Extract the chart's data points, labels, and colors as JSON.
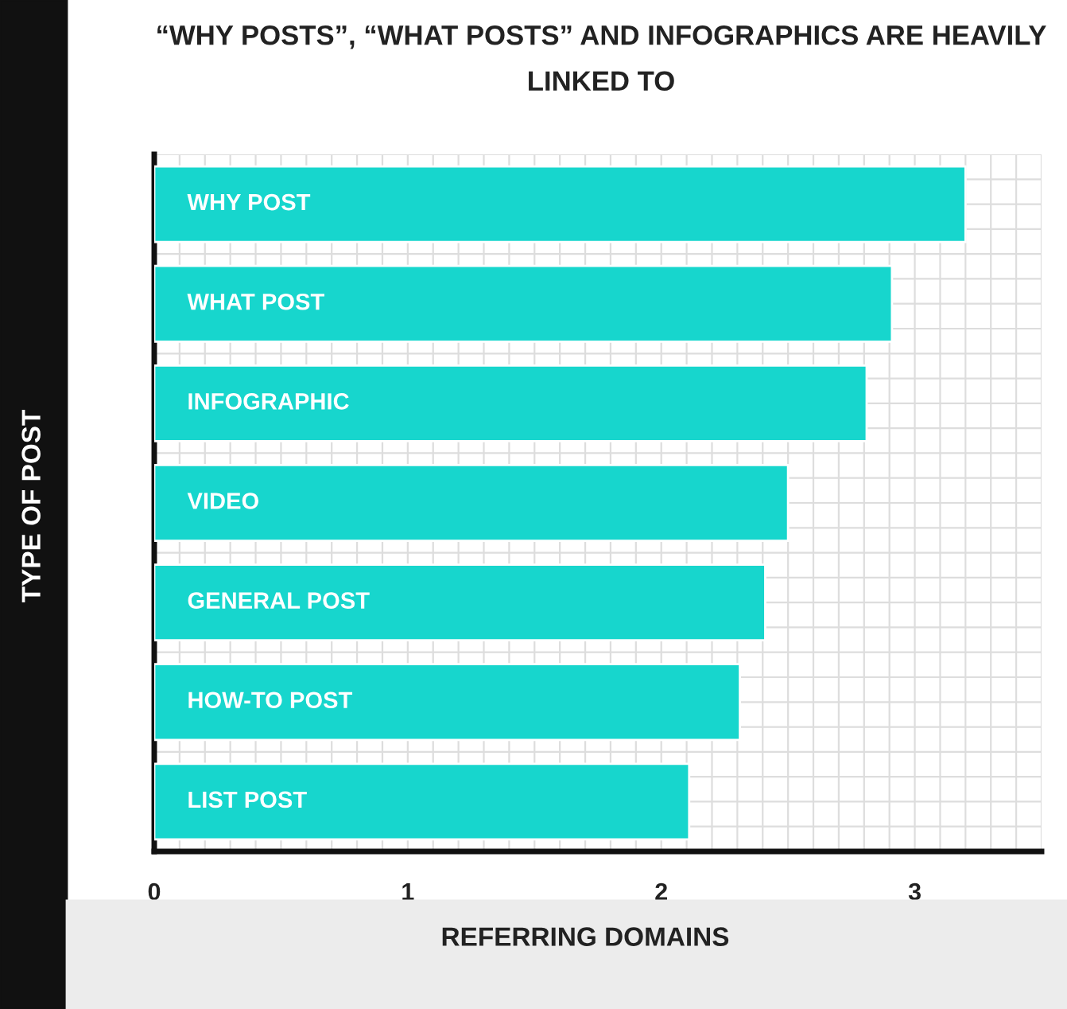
{
  "chart_data": {
    "type": "bar",
    "orientation": "horizontal",
    "title": "“WHY POSTS”, “WHAT POSTS” AND INFOGRAPHICS ARE HEAVILY LINKED TO",
    "xlabel": "REFERRING DOMAINS",
    "ylabel": "TYPE OF POST",
    "categories": [
      "WHY POST",
      "WHAT POST",
      "INFOGRAPHIC",
      "VIDEO",
      "GENERAL POST",
      "HOW-TO POST",
      "LIST POST"
    ],
    "values": [
      3.2,
      2.91,
      2.81,
      2.5,
      2.41,
      2.31,
      2.11
    ],
    "color": "#17d6cd",
    "xlim": [
      0,
      3.5
    ],
    "xticks": [
      0,
      1,
      2,
      3
    ],
    "grid": true
  }
}
